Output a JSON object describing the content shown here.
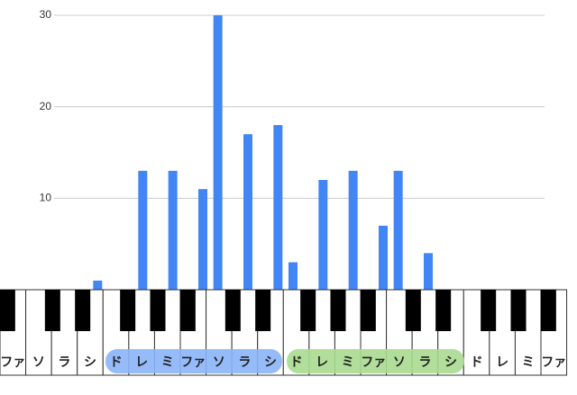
{
  "chart_data": {
    "type": "bar",
    "categories": [
      null,
      null,
      null,
      null,
      null,
      null,
      null,
      null,
      null,
      null,
      null,
      null,
      null
    ],
    "values": [
      1,
      13,
      13,
      11,
      30,
      17,
      18,
      3,
      12,
      13,
      7,
      13,
      4
    ],
    "color": "#4285f4",
    "ylim": [
      0,
      30
    ],
    "yticks": [
      10,
      20,
      30
    ],
    "grid": true
  },
  "keyboard": {
    "white_keys": [
      "ファ",
      "ソ",
      "ラ",
      "シ",
      "ド",
      "レ",
      "ミ",
      "ファ",
      "ソ",
      "ラ",
      "シ",
      "ド",
      "レ",
      "ミ",
      "ファ",
      "ソ",
      "ラ",
      "シ",
      "ド",
      "レ",
      "ミ",
      "ファ"
    ]
  }
}
